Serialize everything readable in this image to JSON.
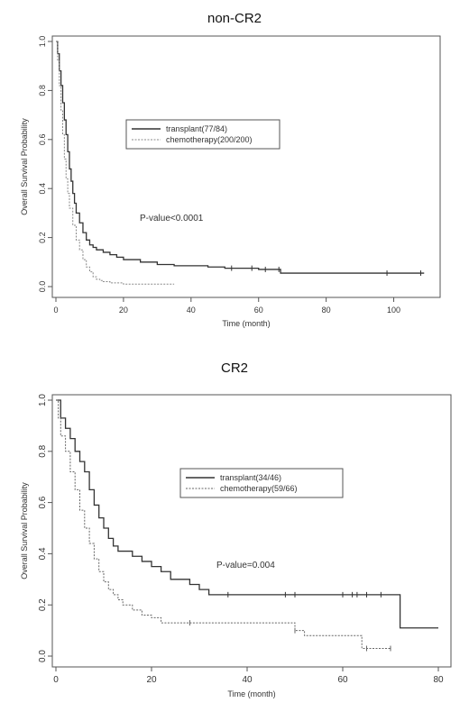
{
  "chart_data": [
    {
      "type": "line",
      "title": "non-CR2",
      "xlabel": "Time (month)",
      "ylabel": "Overall Survival Probability",
      "xlim": [
        0,
        110
      ],
      "ylim": [
        0,
        1.0
      ],
      "x_ticks": [
        "0",
        "20",
        "40",
        "60",
        "80",
        "100"
      ],
      "y_ticks": [
        "0.0",
        "0.2",
        "0.4",
        "0.6",
        "0.8",
        "1.0"
      ],
      "grid": false,
      "legend_position": "upper-center",
      "annotation": "P-value<0.0001",
      "series": [
        {
          "name": "transplant(77/84)",
          "style": "solid",
          "color": "#333333",
          "x": [
            0,
            0.5,
            1,
            1.5,
            2,
            2.5,
            3,
            3.5,
            4,
            4.5,
            5,
            5.5,
            6,
            7,
            8,
            9,
            10,
            11,
            12,
            14,
            16,
            18,
            20,
            25,
            30,
            35,
            40,
            45,
            50,
            55,
            60,
            66,
            66.5,
            80,
            100,
            109
          ],
          "y": [
            1.0,
            0.95,
            0.88,
            0.82,
            0.75,
            0.68,
            0.62,
            0.55,
            0.48,
            0.43,
            0.38,
            0.34,
            0.3,
            0.26,
            0.22,
            0.19,
            0.17,
            0.16,
            0.15,
            0.14,
            0.13,
            0.12,
            0.11,
            0.1,
            0.09,
            0.085,
            0.085,
            0.08,
            0.075,
            0.075,
            0.07,
            0.07,
            0.055,
            0.055,
            0.055,
            0.055
          ],
          "censor_x": [
            52,
            58,
            62,
            66,
            98,
            108
          ]
        },
        {
          "name": "chemotherapy(200/200)",
          "style": "dashed",
          "color": "#888888",
          "x": [
            0,
            0.5,
            1,
            1.5,
            2,
            2.5,
            3,
            3.5,
            4,
            5,
            6,
            7,
            8,
            9,
            10,
            11,
            12,
            13,
            14,
            16,
            20,
            35
          ],
          "y": [
            1.0,
            0.92,
            0.82,
            0.72,
            0.62,
            0.52,
            0.44,
            0.38,
            0.32,
            0.25,
            0.19,
            0.15,
            0.11,
            0.08,
            0.06,
            0.04,
            0.03,
            0.025,
            0.02,
            0.015,
            0.01,
            0.01
          ],
          "censor_x": []
        }
      ]
    },
    {
      "type": "line",
      "title": "CR2",
      "xlabel": "Time (month)",
      "ylabel": "Overall Survival Probability",
      "xlim": [
        0,
        80
      ],
      "ylim": [
        0,
        1.0
      ],
      "x_ticks": [
        "0",
        "20",
        "40",
        "60",
        "80"
      ],
      "y_ticks": [
        "0.0",
        "0.2",
        "0.4",
        "0.6",
        "0.8",
        "1.0"
      ],
      "grid": false,
      "legend_position": "center-right",
      "annotation": "P-value=0.004",
      "series": [
        {
          "name": "transplant(34/46)",
          "style": "solid",
          "color": "#333333",
          "x": [
            0,
            1,
            2,
            3,
            4,
            5,
            6,
            7,
            8,
            9,
            10,
            11,
            12,
            13,
            14,
            15,
            16,
            17,
            18,
            20,
            22,
            24,
            26,
            28,
            30,
            32,
            72,
            80
          ],
          "y": [
            1.0,
            0.93,
            0.89,
            0.85,
            0.8,
            0.76,
            0.72,
            0.65,
            0.59,
            0.54,
            0.5,
            0.46,
            0.43,
            0.41,
            0.41,
            0.41,
            0.39,
            0.39,
            0.37,
            0.35,
            0.33,
            0.3,
            0.3,
            0.28,
            0.26,
            0.24,
            0.11,
            0.11
          ],
          "censor_x": [
            36,
            48,
            50,
            60,
            62,
            63,
            65,
            68
          ]
        },
        {
          "name": "chemotherapy(59/66)",
          "style": "dashed",
          "color": "#666666",
          "x": [
            0,
            0.5,
            1,
            2,
            3,
            4,
            5,
            6,
            7,
            8,
            9,
            10,
            11,
            12,
            13,
            14,
            16,
            18,
            20,
            22,
            25,
            30,
            45,
            50,
            52,
            60,
            64,
            70
          ],
          "y": [
            1.0,
            0.93,
            0.86,
            0.8,
            0.72,
            0.65,
            0.57,
            0.5,
            0.44,
            0.38,
            0.33,
            0.29,
            0.26,
            0.24,
            0.22,
            0.2,
            0.18,
            0.16,
            0.15,
            0.13,
            0.13,
            0.13,
            0.13,
            0.1,
            0.08,
            0.08,
            0.03,
            0.03
          ],
          "censor_x": [
            28,
            50,
            65,
            70
          ]
        }
      ]
    }
  ]
}
